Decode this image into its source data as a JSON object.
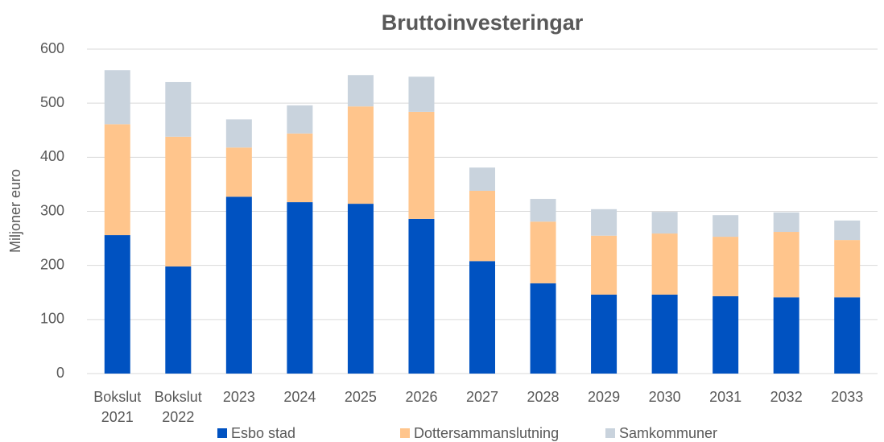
{
  "chart_data": {
    "type": "stacked_bar",
    "title": "Bruttoinvesteringar",
    "y_label": "Miljoner euro",
    "categories": [
      "Bokslut 2021",
      "Bokslut 2022",
      "2023",
      "2024",
      "2025",
      "2026",
      "2027",
      "2028",
      "2029",
      "2030",
      "2031",
      "2032",
      "2033"
    ],
    "series": [
      {
        "name": "Esbo stad",
        "color": "#0052c1",
        "values": [
          256,
          198,
          327,
          317,
          314,
          286,
          208,
          167,
          146,
          146,
          143,
          141,
          141
        ]
      },
      {
        "name": "Dottersammanslutning",
        "color": "#ffc58c",
        "values": [
          205,
          240,
          91,
          127,
          180,
          198,
          130,
          114,
          109,
          113,
          110,
          121,
          106
        ]
      },
      {
        "name": "Samkommuner",
        "color": "#c9d3dd",
        "values": [
          100,
          101,
          52,
          52,
          58,
          65,
          43,
          42,
          49,
          40,
          40,
          36,
          36
        ]
      }
    ],
    "ylim": [
      0,
      600
    ],
    "yticks": [
      0,
      100,
      200,
      300,
      400,
      500,
      600
    ],
    "grid": true,
    "legend": "bottom"
  }
}
